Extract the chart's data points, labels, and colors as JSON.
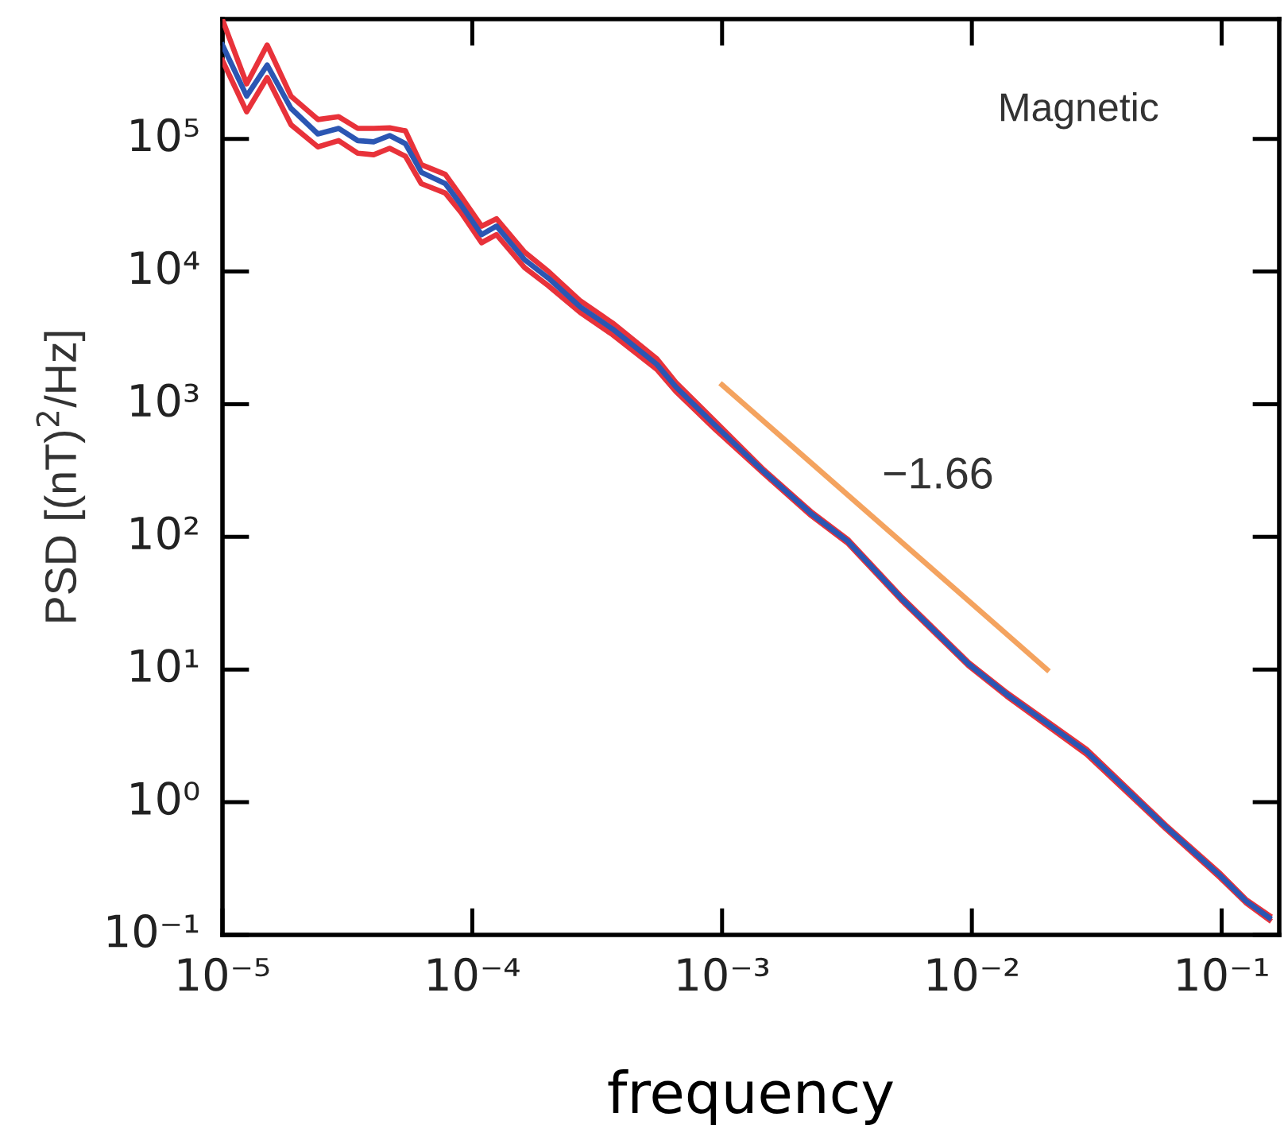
{
  "chart_data": {
    "type": "line",
    "xlabel": "frequency",
    "ylabel": "PSD [(nT)$^{2}$/Hz]",
    "log": "xy",
    "grid": false,
    "legend": false,
    "marker": "none",
    "line_style": "solid",
    "x": [
      1e-05,
      1.25e-05,
      1.51e-05,
      1.88e-05,
      2.41e-05,
      2.92e-05,
      3.48e-05,
      4.03e-05,
      4.67e-05,
      5.4e-05,
      6.25e-05,
      7.8e-05,
      9e-05,
      0.000109,
      0.000125,
      0.000162,
      0.000202,
      0.000271,
      0.000364,
      0.000548,
      0.000653,
      0.00094,
      0.00147,
      0.00227,
      0.00318,
      0.00525,
      0.0097,
      0.0138,
      0.0288,
      0.0598,
      0.0986,
      0.125,
      0.155
    ],
    "series": [
      {
        "color": "#e8323a",
        "values": [
          390000,
          160000,
          290000,
          128000,
          87000,
          97000,
          78000,
          76000,
          85000,
          74000,
          46000,
          39000,
          28000,
          16500,
          19000,
          10700,
          7800,
          4900,
          3350,
          1830,
          1250,
          645,
          300,
          145,
          90,
          33,
          10.7,
          6.3,
          2.3,
          0.63,
          0.27,
          0.175,
          0.13
        ]
      },
      {
        "color": "#e8323a",
        "values": [
          790000,
          260000,
          510000,
          210000,
          140000,
          147000,
          120000,
          120000,
          121000,
          115000,
          64000,
          54000,
          37000,
          22000,
          25000,
          14000,
          10000,
          6000,
          4100,
          2200,
          1460,
          740,
          320,
          155,
          96,
          35,
          11.3,
          6.7,
          2.5,
          0.67,
          0.29,
          0.185,
          0.14
        ]
      },
      {
        "color": "#2b56b3",
        "values": [
          510000,
          210000,
          360000,
          170000,
          109000,
          120000,
          97000,
          95000,
          106000,
          92000,
          56000,
          46000,
          32000,
          19000,
          22000,
          12300,
          8900,
          5400,
          3700,
          2000,
          1350,
          690,
          310,
          150,
          93,
          34,
          11,
          6.5,
          2.4,
          0.65,
          0.28,
          0.18,
          0.135
        ]
      },
      {
        "type": "line",
        "color": "#f4a35f",
        "x": [
          0.001,
          0.02
        ],
        "values": [
          1400,
          10
        ]
      }
    ],
    "xlim": [
      1e-05,
      0.17
    ],
    "ylim": [
      0.1,
      800000
    ],
    "xticks": [
      {
        "value": 1e-05,
        "label": "10⁻⁵"
      },
      {
        "value": 0.0001,
        "label": "10⁻⁴"
      },
      {
        "value": 0.001,
        "label": "10⁻³"
      },
      {
        "value": 0.01,
        "label": "10⁻²"
      },
      {
        "value": 0.1,
        "label": "10⁻¹"
      }
    ],
    "yticks": [
      {
        "value": 0.1,
        "label": "10⁻¹"
      },
      {
        "value": 1,
        "label": "10⁰"
      },
      {
        "value": 10,
        "label": "10¹"
      },
      {
        "value": 100,
        "label": "10²"
      },
      {
        "value": 1000,
        "label": "10³"
      },
      {
        "value": 10000,
        "label": "10⁴"
      },
      {
        "value": 100000,
        "label": "10⁵"
      }
    ],
    "annotations": [
      "Magnetic",
      "−1.66"
    ]
  }
}
